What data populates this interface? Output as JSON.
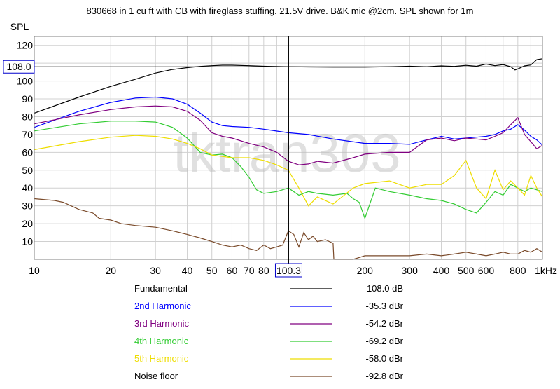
{
  "chart_data": {
    "type": "line",
    "title": "830668 in 1 cu ft with CB with fireglass stuffing. 21.5V drive. B&K mic @2cm. SPL shown for 1m",
    "ylabel": "SPL",
    "xscale": "log",
    "xlim": [
      10,
      1000
    ],
    "ylim": [
      0,
      125
    ],
    "grid": true,
    "watermark": "tktran303",
    "x_ticks": [
      "10",
      "20",
      "30",
      "40",
      "50",
      "60",
      "70",
      "80",
      "200",
      "300",
      "400",
      "500",
      "600",
      "800",
      "1kHz"
    ],
    "y_ticks": [
      "120",
      "100",
      "90",
      "80",
      "70",
      "60",
      "50",
      "40",
      "30",
      "20",
      "10"
    ],
    "cursor": {
      "x_label": "100.3",
      "y_label": "108.0"
    },
    "series": [
      {
        "name": "Fundamental",
        "color": "#000000",
        "value": "108.0 dB",
        "x": [
          10,
          15,
          20,
          25,
          30,
          35,
          40,
          45,
          50,
          55,
          60,
          70,
          80,
          100,
          120,
          150,
          200,
          250,
          300,
          350,
          400,
          450,
          500,
          550,
          600,
          650,
          700,
          750,
          780,
          800,
          850,
          900,
          950,
          1000
        ],
        "y": [
          82,
          91,
          97,
          101,
          104.5,
          106.5,
          107.5,
          108.2,
          108.6,
          108.9,
          108.9,
          108.6,
          108.3,
          108.0,
          107.9,
          107.8,
          107.8,
          108.0,
          108.3,
          108.0,
          108.5,
          108.2,
          108.8,
          108.3,
          109.5,
          108.6,
          109.2,
          108.0,
          106.2,
          106.8,
          108.5,
          109.0,
          112.0,
          112.5
        ]
      },
      {
        "name": "2nd Harmonic",
        "color": "#0000ff",
        "value": "-35.3 dBr",
        "x": [
          10,
          15,
          20,
          25,
          30,
          35,
          40,
          45,
          50,
          55,
          60,
          70,
          80,
          100,
          120,
          150,
          200,
          250,
          300,
          350,
          400,
          450,
          500,
          550,
          600,
          650,
          700,
          750,
          800,
          850,
          900,
          950,
          1000
        ],
        "y": [
          74,
          83,
          88,
          90.5,
          91,
          90,
          87,
          82,
          77,
          75,
          74.5,
          74,
          73,
          71,
          70,
          67.5,
          65,
          65,
          64.5,
          67,
          69,
          67.5,
          68,
          68.5,
          69,
          70,
          72,
          73,
          75.5,
          72.5,
          69,
          67,
          64
        ]
      },
      {
        "name": "3rd Harmonic",
        "color": "#800080",
        "value": "-54.2 dBr",
        "x": [
          10,
          15,
          20,
          25,
          30,
          35,
          40,
          45,
          50,
          55,
          60,
          70,
          80,
          90,
          100,
          110,
          120,
          130,
          150,
          180,
          200,
          250,
          300,
          350,
          400,
          450,
          500,
          550,
          600,
          650,
          700,
          750,
          800,
          850,
          900,
          950,
          1000
        ],
        "y": [
          76,
          81,
          84,
          85.5,
          86,
          85.5,
          83,
          78,
          71,
          69,
          68,
          65,
          63,
          60,
          55,
          53,
          53.5,
          55,
          54,
          57,
          59,
          60,
          60,
          67,
          68,
          66.5,
          68,
          67.5,
          67,
          69,
          71,
          75.5,
          79.5,
          70,
          66,
          62,
          64
        ]
      },
      {
        "name": "4th Harmonic",
        "color": "#33cc33",
        "value": "-69.2 dBr",
        "x": [
          10,
          15,
          20,
          25,
          30,
          35,
          40,
          45,
          50,
          55,
          60,
          65,
          70,
          75,
          80,
          90,
          100,
          110,
          120,
          130,
          150,
          170,
          180,
          190,
          200,
          220,
          250,
          300,
          350,
          400,
          450,
          500,
          550,
          600,
          650,
          700,
          750,
          800,
          850,
          900,
          950,
          1000
        ],
        "y": [
          72,
          76,
          77.5,
          77.5,
          77,
          74,
          68,
          60,
          58.5,
          59,
          57,
          52,
          46,
          39,
          37,
          38,
          40,
          36,
          38,
          37,
          36,
          37,
          34,
          32,
          23,
          40,
          38,
          36,
          34,
          33,
          31,
          28,
          26,
          32,
          38,
          36,
          42,
          40,
          38,
          40,
          39,
          38
        ]
      },
      {
        "name": "5th Harmonic",
        "color": "#eedd00",
        "value": "-58.0 dBr",
        "x": [
          10,
          15,
          20,
          25,
          30,
          35,
          40,
          45,
          50,
          60,
          70,
          80,
          90,
          100,
          110,
          120,
          130,
          150,
          180,
          200,
          250,
          300,
          350,
          400,
          450,
          500,
          550,
          600,
          650,
          700,
          750,
          800,
          850,
          900,
          950,
          1000
        ],
        "y": [
          61.5,
          66,
          68.5,
          69.5,
          69,
          67.5,
          65,
          62,
          58.5,
          57,
          57,
          55.5,
          53,
          50,
          40,
          30,
          35,
          31,
          40,
          42.5,
          44,
          40,
          42,
          42,
          47,
          55.5,
          40,
          34,
          50,
          39,
          44,
          40,
          36,
          47,
          40,
          35
        ]
      },
      {
        "name": "Noise floor",
        "color": "#7a4a2a",
        "value": "-92.8 dBr",
        "x": [
          10,
          12,
          13,
          15,
          17,
          18,
          20,
          22,
          25,
          30,
          35,
          40,
          45,
          50,
          55,
          60,
          65,
          70,
          75,
          80,
          85,
          90,
          95,
          100,
          105,
          110,
          115,
          120,
          125,
          130,
          140,
          150,
          151,
          180,
          200,
          250,
          300,
          350,
          400,
          450,
          500,
          550,
          600,
          650,
          700,
          750,
          800,
          850,
          900,
          950,
          1000
        ],
        "y": [
          34,
          33,
          32,
          28,
          26,
          23,
          22,
          20,
          19,
          18,
          16,
          14,
          12,
          10,
          8,
          7,
          8,
          6,
          5,
          8,
          6,
          7,
          8,
          16,
          14,
          7,
          15,
          11,
          13,
          10,
          11,
          9,
          0,
          0,
          2,
          2,
          2,
          3,
          2,
          3,
          4,
          3,
          2,
          3,
          4,
          3,
          3,
          5,
          4,
          6,
          4
        ]
      }
    ]
  }
}
